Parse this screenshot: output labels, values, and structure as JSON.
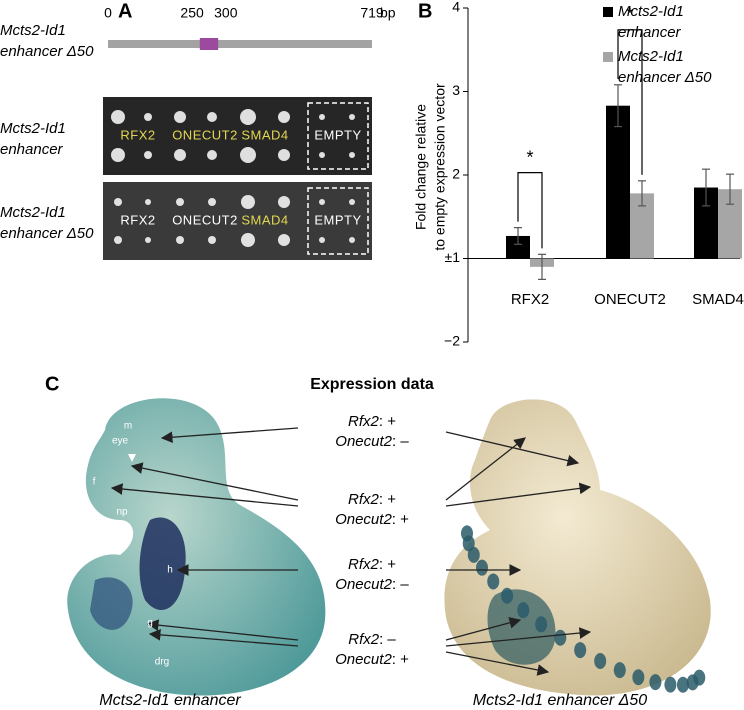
{
  "panel_a": {
    "label": "A",
    "row_labels": [
      "Mcts2-Id1 enhancer Δ50",
      "Mcts2-Id1 enhancer",
      "Mcts2-Id1 enhancer Δ50"
    ],
    "scale": {
      "range": [
        0,
        719
      ],
      "ticks": [
        0,
        250,
        300,
        719
      ],
      "unit": "bp",
      "color": "#a3a3a3",
      "highlight_color": "#9c4a9e"
    },
    "blots": [
      {
        "labels": [
          {
            "text": "RFX2",
            "color": "#e3d651"
          },
          {
            "text": "ONECUT2",
            "color": "#e3d651"
          },
          {
            "text": "SMAD4",
            "color": "#e3d651"
          },
          {
            "text": "EMPTY",
            "color": "#ffffff"
          }
        ]
      },
      {
        "labels": [
          {
            "text": "RFX2",
            "color": "#ffffff"
          },
          {
            "text": "ONECUT2",
            "color": "#ffffff"
          },
          {
            "text": "SMAD4",
            "color": "#e3d651"
          },
          {
            "text": "EMPTY",
            "color": "#ffffff"
          }
        ]
      }
    ]
  },
  "chart_data": {
    "type": "bar",
    "panel_label": "B",
    "y_label": [
      "Fold change relative",
      "to empty expression vector"
    ],
    "scale": "fold-change",
    "categories": [
      "RFX2",
      "ONECUT2",
      "SMAD4"
    ],
    "series": [
      {
        "name": "Mcts2-Id1 enhancer",
        "color": "#000000",
        "values": [
          1.27,
          2.83,
          1.85
        ],
        "errors": [
          0.1,
          0.25,
          0.22
        ]
      },
      {
        "name": "Mcts2-Id1 enhancer Δ50",
        "color": "#a6a6a6",
        "values": [
          -1.1,
          1.78,
          1.83
        ],
        "errors": [
          0.15,
          0.15,
          0.18
        ]
      }
    ],
    "ylim": [
      -2,
      4
    ],
    "yticks": [
      4,
      3,
      2,
      {
        "value": 1,
        "label": "±1"
      },
      {
        "value": -2,
        "label": "−2"
      }
    ],
    "significance": [
      {
        "category": "RFX2",
        "label": "*"
      },
      {
        "category": "ONECUT2",
        "label": "*"
      }
    ]
  },
  "panel_c": {
    "label": "C",
    "title": "Expression data",
    "annotations": [
      {
        "lines": [
          {
            "gene": "Rfx2",
            "state": ": +"
          },
          {
            "gene": "Onecut2",
            "state": ": –"
          }
        ]
      },
      {
        "lines": [
          {
            "gene": "Rfx2",
            "state": ": +"
          },
          {
            "gene": "Onecut2",
            "state": ": +"
          }
        ]
      },
      {
        "lines": [
          {
            "gene": "Rfx2",
            "state": ": +"
          },
          {
            "gene": "Onecut2",
            "state": ": –"
          }
        ]
      },
      {
        "lines": [
          {
            "gene": "Rfx2",
            "state": ": –"
          },
          {
            "gene": "Onecut2",
            "state": ": +"
          }
        ]
      }
    ],
    "structure_labels": [
      "m",
      "eye",
      "f",
      "np",
      "h",
      "g",
      "drg"
    ],
    "captions": [
      "Mcts2-Id1 enhancer",
      "Mcts2-Id1 enhancer Δ50"
    ]
  }
}
